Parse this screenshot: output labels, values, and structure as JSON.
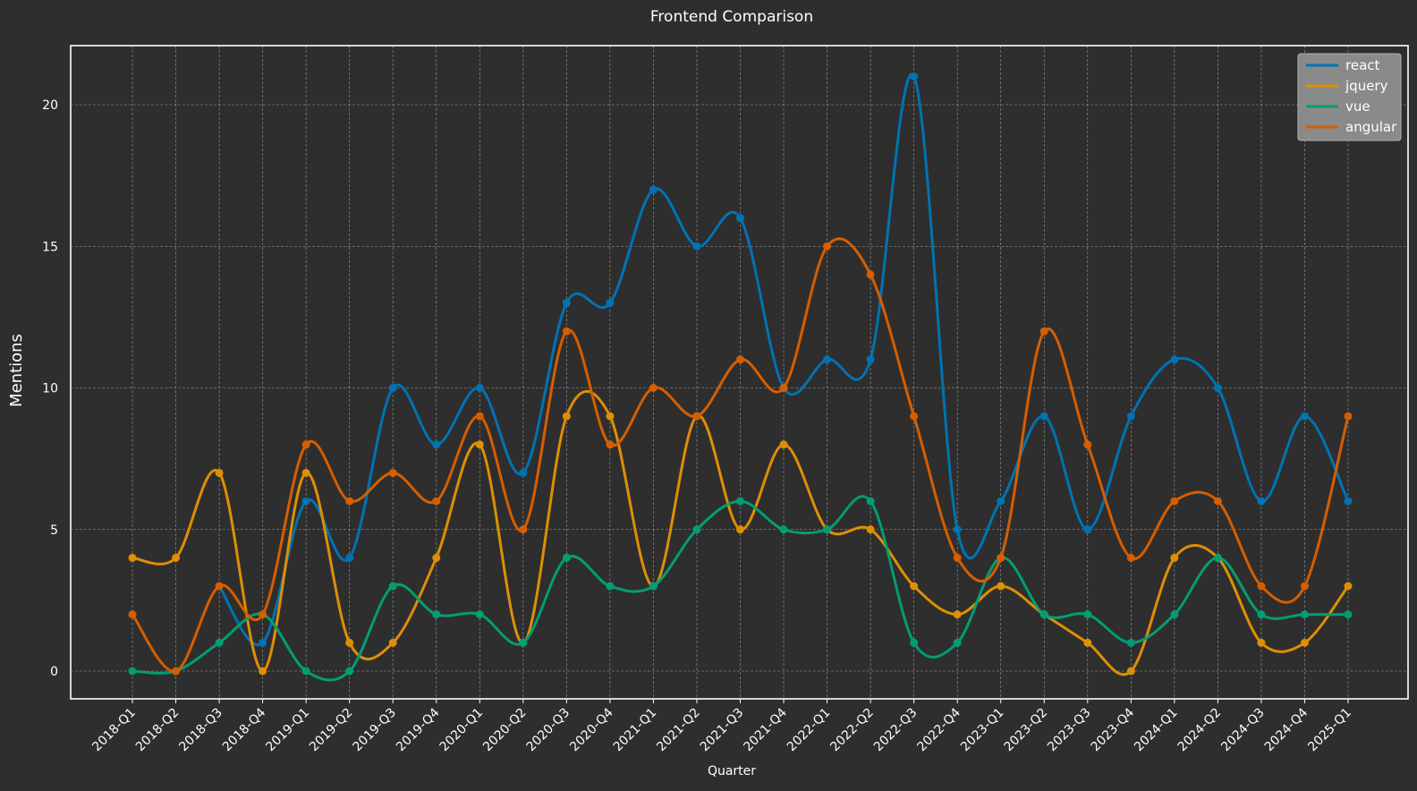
{
  "chart_data": {
    "type": "line",
    "title": "Frontend Comparison",
    "xlabel": "Quarter",
    "ylabel": "Mentions",
    "categories": [
      "2018-Q1",
      "2018-Q2",
      "2018-Q3",
      "2018-Q4",
      "2019-Q1",
      "2019-Q2",
      "2019-Q3",
      "2019-Q4",
      "2020-Q1",
      "2020-Q2",
      "2020-Q3",
      "2020-Q4",
      "2021-Q1",
      "2021-Q2",
      "2021-Q3",
      "2021-Q4",
      "2022-Q1",
      "2022-Q2",
      "2022-Q3",
      "2022-Q4",
      "2023-Q1",
      "2023-Q2",
      "2023-Q3",
      "2023-Q4",
      "2024-Q1",
      "2024-Q2",
      "2024-Q3",
      "2024-Q4",
      "2025-Q1"
    ],
    "y_ticks": [
      0,
      5,
      10,
      15,
      20
    ],
    "ylim": [
      -1,
      22
    ],
    "grid": true,
    "legend_position": "top-right",
    "series": [
      {
        "name": "react",
        "color": "#0173b2",
        "values": [
          null,
          null,
          3,
          1,
          6,
          4,
          10,
          8,
          10,
          7,
          13,
          13,
          17,
          15,
          16,
          10,
          11,
          11,
          21,
          5,
          6,
          9,
          5,
          9,
          11,
          10,
          6,
          9,
          6
        ]
      },
      {
        "name": "jquery",
        "color": "#de8f05",
        "values": [
          4,
          4,
          7,
          0,
          7,
          1,
          1,
          4,
          8,
          1,
          9,
          9,
          3,
          9,
          5,
          8,
          5,
          5,
          3,
          2,
          3,
          2,
          1,
          0,
          4,
          4,
          1,
          1,
          3
        ]
      },
      {
        "name": "vue",
        "color": "#029e73",
        "values": [
          0,
          0,
          1,
          2,
          0,
          0,
          3,
          2,
          2,
          1,
          4,
          3,
          3,
          5,
          6,
          5,
          5,
          6,
          1,
          1,
          4,
          2,
          2,
          1,
          2,
          4,
          2,
          2,
          2
        ]
      },
      {
        "name": "angular",
        "color": "#d55e00",
        "values": [
          2,
          0,
          3,
          2,
          8,
          6,
          7,
          6,
          9,
          5,
          12,
          8,
          10,
          9,
          11,
          10,
          15,
          14,
          9,
          4,
          4,
          12,
          8,
          4,
          6,
          6,
          3,
          3,
          9
        ]
      }
    ]
  }
}
